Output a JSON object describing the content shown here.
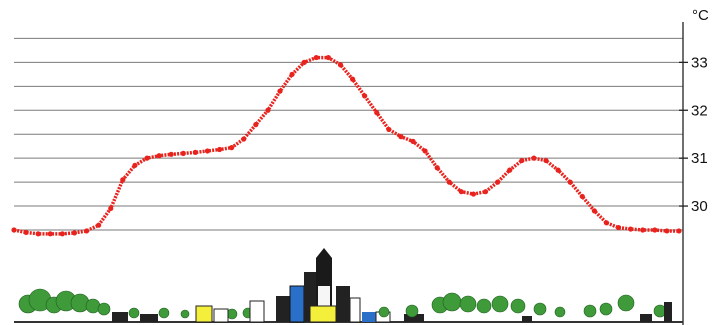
{
  "chart_data": {
    "type": "line",
    "unit": "°C",
    "ylim": [
      29.5,
      33.3
    ],
    "grid": true,
    "y_tick_labels": [
      {
        "value": 33,
        "label": "33"
      },
      {
        "value": 32,
        "label": "32"
      },
      {
        "value": 31,
        "label": "31"
      },
      {
        "value": 30,
        "label": "30"
      }
    ],
    "gridline_values": [
      33.5,
      33.0,
      32.5,
      32.0,
      31.5,
      31.0,
      30.5,
      30.0,
      29.5
    ],
    "series": [
      {
        "color": "#e8231e",
        "x": [
          0,
          12,
          24,
          36,
          48,
          60,
          72,
          84,
          96,
          108,
          120,
          132,
          144,
          156,
          168,
          180,
          192,
          204,
          216,
          228,
          240,
          252,
          264,
          276,
          288,
          300,
          312,
          324,
          336,
          348,
          360,
          372,
          384,
          396,
          408,
          420,
          432,
          444,
          456,
          468,
          480,
          492,
          504,
          516,
          528,
          540,
          552,
          564,
          576,
          588,
          600,
          612,
          624,
          636,
          648,
          660
        ],
        "values": [
          29.5,
          29.45,
          29.42,
          29.42,
          29.42,
          29.44,
          29.48,
          29.6,
          29.95,
          30.55,
          30.85,
          31.0,
          31.05,
          31.08,
          31.1,
          31.12,
          31.15,
          31.18,
          31.22,
          31.4,
          31.7,
          32.0,
          32.4,
          32.75,
          33.0,
          33.1,
          33.1,
          32.95,
          32.65,
          32.3,
          31.95,
          31.6,
          31.45,
          31.35,
          31.15,
          30.8,
          30.5,
          30.3,
          30.25,
          30.3,
          30.5,
          30.75,
          30.95,
          31.0,
          30.95,
          30.75,
          30.5,
          30.2,
          29.9,
          29.65,
          29.55,
          29.52,
          29.5,
          29.5,
          29.48,
          29.48
        ]
      }
    ]
  }
}
